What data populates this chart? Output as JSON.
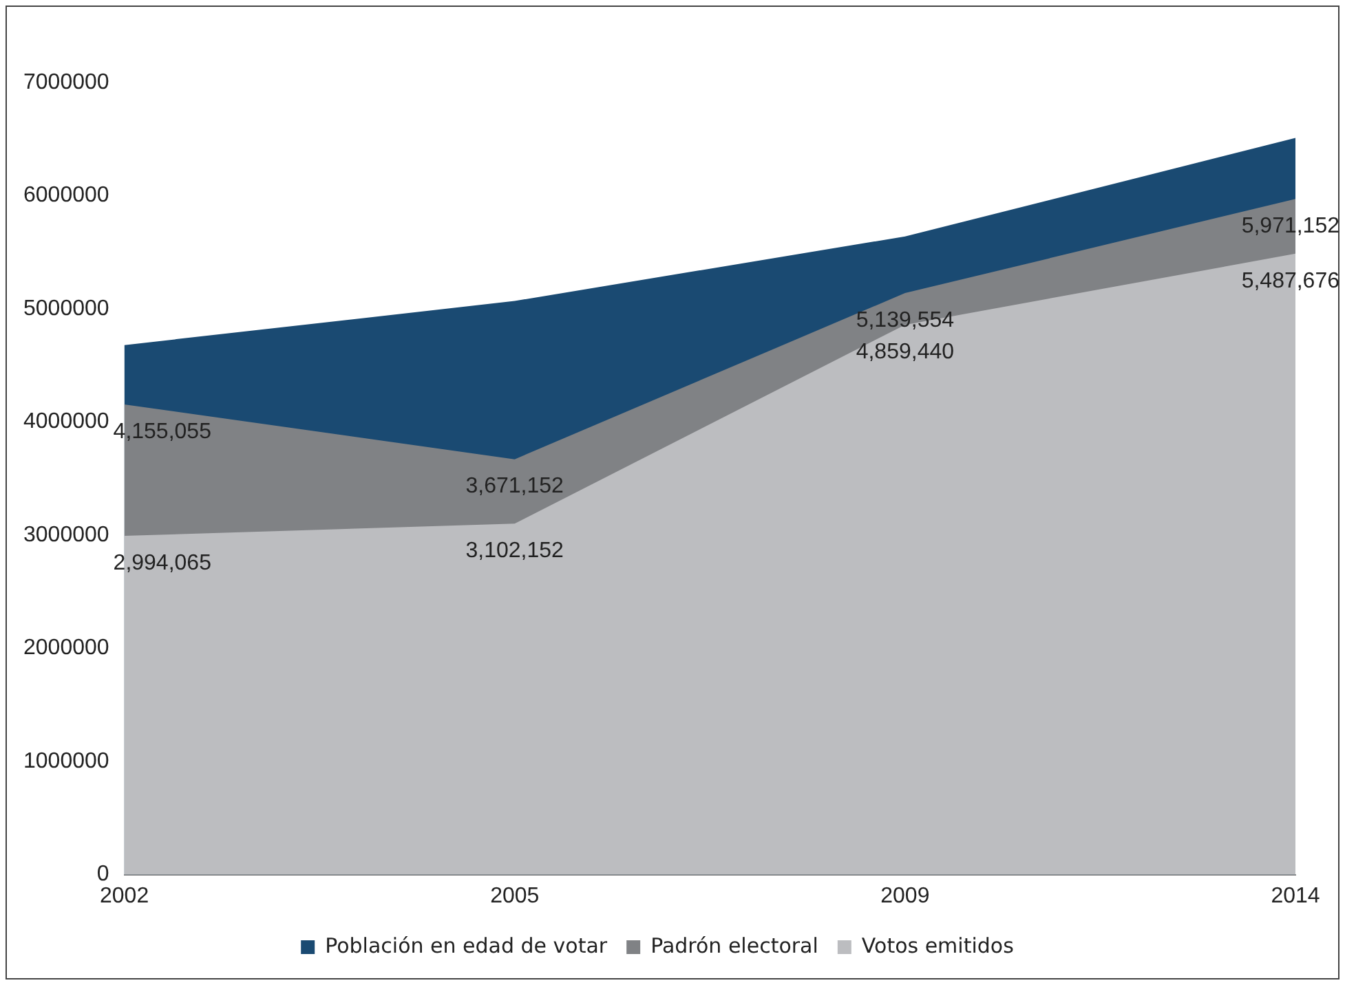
{
  "chart_data": {
    "type": "area",
    "categories": [
      "2002",
      "2005",
      "2009",
      "2014"
    ],
    "series": [
      {
        "name": "Población en edad de votar",
        "color": "#1a4a72",
        "values": [
          4680000,
          5070000,
          5640000,
          6510000
        ]
      },
      {
        "name": "Padrón electoral",
        "color": "#808285",
        "values": [
          4155055,
          3671152,
          5139554,
          5971152
        ],
        "value_labels": [
          "4,155,055",
          "3,671,152",
          "5,139,554",
          "5,971,152"
        ]
      },
      {
        "name": "Votos emitidos",
        "color": "#bcbdc0",
        "values": [
          2994065,
          3102152,
          4859440,
          5487676
        ],
        "value_labels": [
          "2,994,065",
          "3,102,152",
          "4,859,440",
          "5,487,676"
        ]
      }
    ],
    "ylim": [
      0,
      7000000
    ],
    "yticks": [
      0,
      1000000,
      2000000,
      3000000,
      4000000,
      5000000,
      6000000,
      7000000
    ],
    "grid": false,
    "legend": "bottom"
  }
}
